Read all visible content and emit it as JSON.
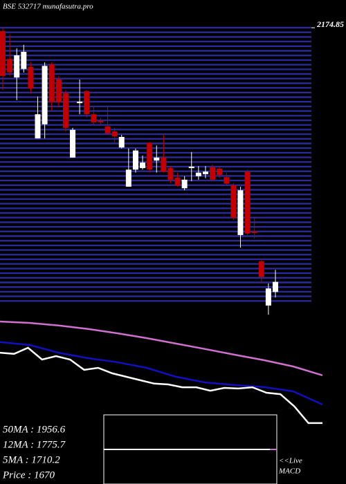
{
  "title": "BSE 532717 munafasutra.pro",
  "chart_data": [
    {
      "type": "candlestick",
      "up_color": "#ffffff",
      "down_color": "#c00000",
      "grid_color": "#2a2a9a",
      "ylim": [
        1605,
        2175
      ],
      "yticks": [
        2174.85
      ],
      "open": [
        2168,
        2113,
        2076,
        2093,
        2097,
        1955,
        1983,
        2102,
        2072,
        2045,
        1917,
        2025,
        2049,
        2003,
        1990,
        1979,
        1969,
        1937,
        1859,
        1893,
        1896,
        1946,
        1911,
        1917,
        1896,
        1877,
        1856,
        1896,
        1880,
        1884,
        1898,
        1895,
        1878,
        1862,
        1763,
        1889,
        1770,
        1711,
        1623,
        1650
      ],
      "high": [
        2175,
        2161,
        2134,
        2141,
        2106,
        2038,
        2106,
        2106,
        2079,
        2051,
        1976,
        2072,
        2051,
        2017,
        1996,
        2017,
        1976,
        1962,
        1935,
        1935,
        1921,
        1948,
        1941,
        1962,
        1900,
        1887,
        1880,
        1928,
        1900,
        1900,
        1903,
        1900,
        1887,
        1866,
        1859,
        1893,
        1797,
        1715,
        1667,
        1694
      ],
      "low": [
        2051,
        2079,
        2031,
        2086,
        2045,
        1955,
        1955,
        2010,
        2017,
        1969,
        1917,
        2003,
        1996,
        1983,
        1983,
        1962,
        1948,
        1935,
        1859,
        1887,
        1893,
        1887,
        1887,
        1887,
        1866,
        1859,
        1852,
        1870,
        1873,
        1876,
        1870,
        1876,
        1862,
        1793,
        1738,
        1763,
        1756,
        1667,
        1605,
        1639
      ],
      "close": [
        2079,
        2086,
        2120,
        2127,
        2054,
        2003,
        2099,
        2027,
        2027,
        1976,
        1972,
        2028,
        2003,
        1987,
        1987,
        1965,
        1959,
        1958,
        1893,
        1931,
        1907,
        1893,
        1917,
        1889,
        1873,
        1862,
        1873,
        1899,
        1887,
        1889,
        1873,
        1882,
        1865,
        1797,
        1852,
        1766,
        1767,
        1680,
        1657,
        1670
      ]
    },
    {
      "type": "line",
      "ylim": [
        1690,
        2240
      ],
      "series": [
        {
          "color": "#d070d0",
          "values": [
            2223,
            2216,
            2203,
            2186,
            2165,
            2141,
            2114,
            2087,
            2059,
            2032,
            2001,
            1957
          ]
        },
        {
          "color": "#1010c0",
          "values": [
            2121,
            2107,
            2069,
            2042,
            2022,
            1994,
            1950,
            1922,
            1909,
            1899,
            1878,
            1813
          ]
        },
        {
          "color": "#ffffff",
          "values": [
            2069,
            2063,
            2093,
            2035,
            2052,
            2035,
            1984,
            1994,
            1967,
            1950,
            1933,
            1916,
            1912,
            1898,
            1898,
            1881,
            1895,
            1892,
            1898,
            1871,
            1864,
            1803,
            1721,
            1721
          ]
        }
      ]
    }
  ],
  "annotations": [
    "50MA : 1956.6",
    "12MA : 1775.7",
    "5MA : 1710.2",
    "Price   : 1670"
  ],
  "macd_label": [
    "<<Live",
    "MACD"
  ]
}
